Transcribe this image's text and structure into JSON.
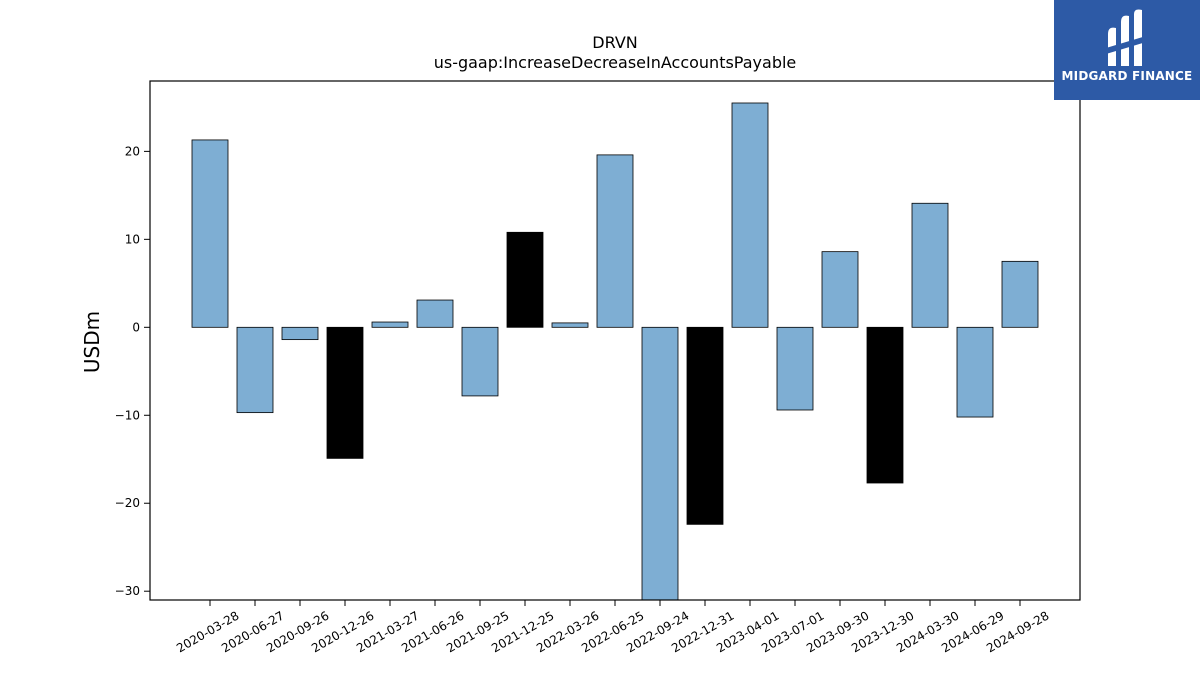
{
  "brand": {
    "name": "MIDGARD FINANCE",
    "logo_color": "#2d5aa6"
  },
  "chart_data": {
    "type": "bar",
    "title": "DRVN",
    "subtitle": "us-gaap:IncreaseDecreaseInAccountsPayable",
    "ylabel": "USDm",
    "xlabel": "",
    "ylim": [
      -31,
      28
    ],
    "yticks": [
      -30,
      -20,
      -10,
      0,
      10,
      20
    ],
    "categories": [
      "2020-03-28",
      "2020-06-27",
      "2020-09-26",
      "2020-12-26",
      "2021-03-27",
      "2021-06-26",
      "2021-09-25",
      "2021-12-25",
      "2022-03-26",
      "2022-06-25",
      "2022-09-24",
      "2022-12-31",
      "2023-04-01",
      "2023-07-01",
      "2023-09-30",
      "2023-12-30",
      "2024-03-30",
      "2024-06-29",
      "2024-09-28"
    ],
    "values": [
      21.3,
      -9.7,
      -1.4,
      -14.9,
      0.6,
      3.1,
      -7.8,
      10.8,
      0.5,
      19.6,
      -31.0,
      -22.4,
      25.5,
      -9.4,
      8.6,
      -17.7,
      14.1,
      -10.2,
      7.5
    ],
    "bar_colors": [
      "#7eaed3",
      "#7eaed3",
      "#7eaed3",
      "#000000",
      "#7eaed3",
      "#7eaed3",
      "#7eaed3",
      "#000000",
      "#7eaed3",
      "#7eaed3",
      "#7eaed3",
      "#000000",
      "#7eaed3",
      "#7eaed3",
      "#7eaed3",
      "#000000",
      "#7eaed3",
      "#7eaed3",
      "#7eaed3"
    ],
    "grid": false,
    "legend": "none"
  }
}
